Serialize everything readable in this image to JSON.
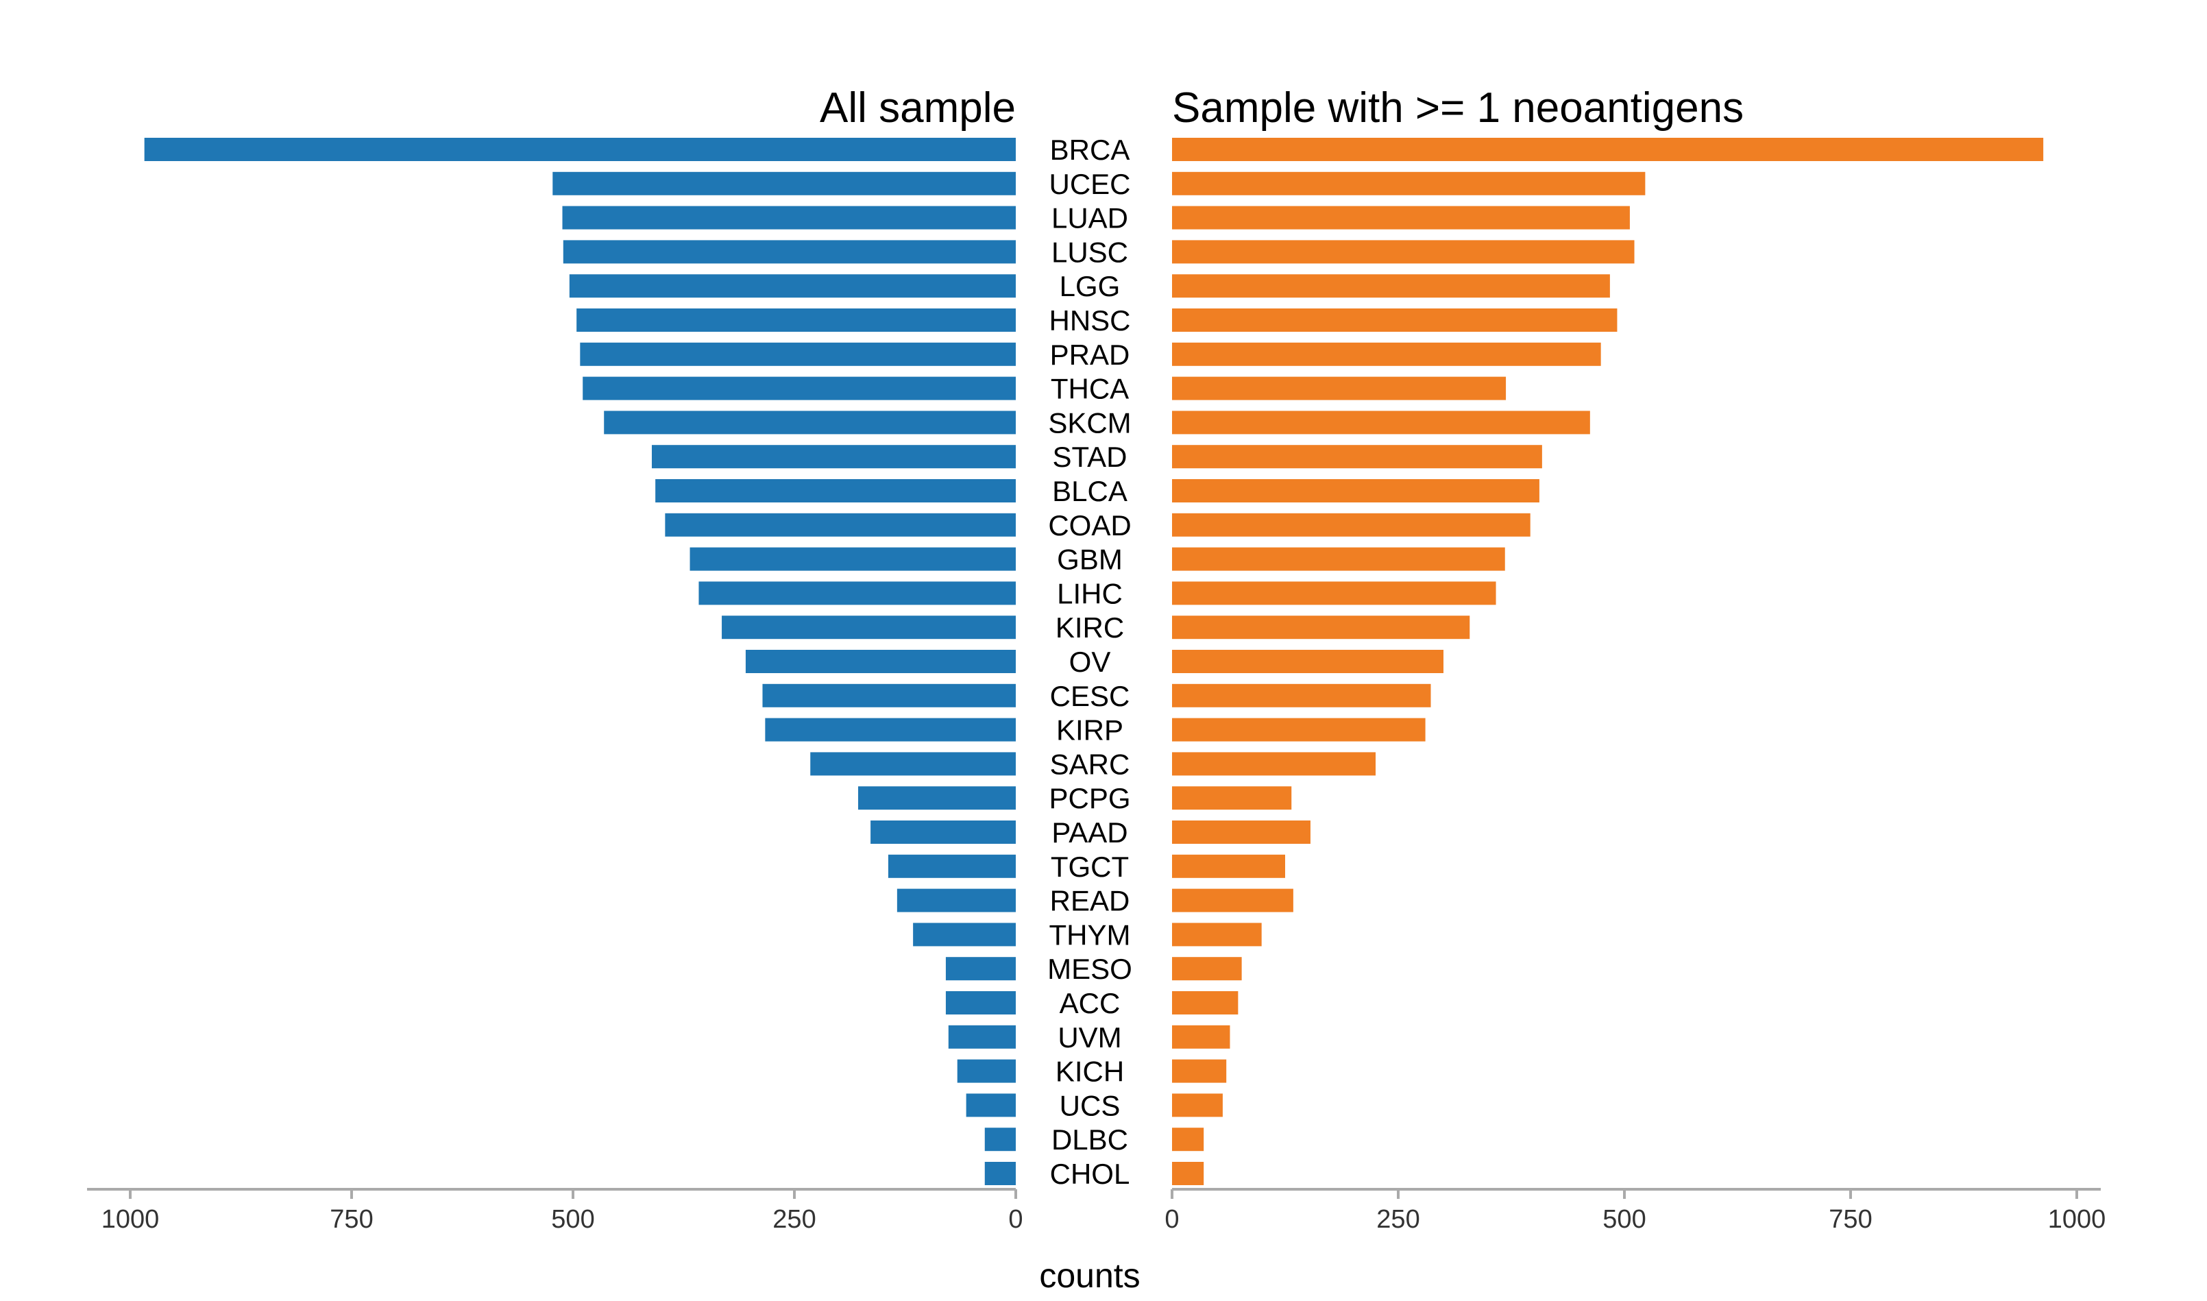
{
  "chart_data": {
    "type": "bar",
    "orientation": "horizontal-butterfly",
    "categories": [
      "BRCA",
      "UCEC",
      "LUAD",
      "LUSC",
      "LGG",
      "HNSC",
      "PRAD",
      "THCA",
      "SKCM",
      "STAD",
      "BLCA",
      "COAD",
      "GBM",
      "LIHC",
      "KIRC",
      "OV",
      "CESC",
      "KIRP",
      "SARC",
      "PCPG",
      "PAAD",
      "TGCT",
      "READ",
      "THYM",
      "MESO",
      "ACC",
      "UVM",
      "KICH",
      "UCS",
      "DLBC",
      "CHOL"
    ],
    "series": [
      {
        "name": "All sample",
        "side": "left",
        "color": "#1f77b4",
        "values": [
          984,
          523,
          512,
          511,
          504,
          496,
          492,
          489,
          465,
          411,
          407,
          396,
          368,
          358,
          332,
          305,
          286,
          283,
          232,
          178,
          164,
          144,
          134,
          116,
          79,
          79,
          76,
          66,
          56,
          35,
          35
        ]
      },
      {
        "name": "Sample with >= 1 neoantigens",
        "side": "right",
        "color": "#f07f23",
        "values": [
          963,
          523,
          506,
          511,
          484,
          492,
          474,
          369,
          462,
          409,
          406,
          396,
          368,
          358,
          329,
          300,
          286,
          280,
          225,
          132,
          153,
          125,
          134,
          99,
          77,
          73,
          64,
          60,
          56,
          35,
          35
        ]
      }
    ],
    "xlabel": "counts",
    "xlim": [
      0,
      1000
    ],
    "xticks": [
      "1000",
      "750",
      "500",
      "250",
      "0"
    ],
    "xticks_right": [
      "0",
      "250",
      "500",
      "750",
      "1000"
    ],
    "grid": false,
    "legend": "none"
  }
}
